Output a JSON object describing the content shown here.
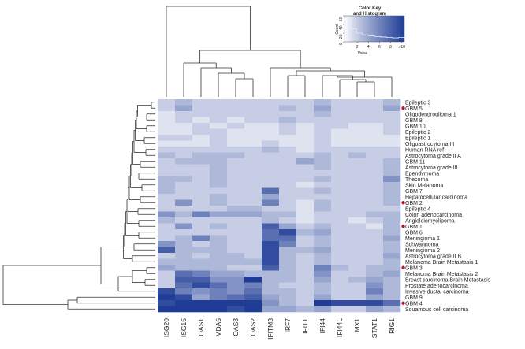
{
  "chart_data": {
    "type": "heatmap",
    "columns": [
      "ISG20",
      "ISG15",
      "OAS1",
      "MDA5",
      "OAS3",
      "OAS2",
      "IFITM3",
      "IRF7",
      "IFIT1",
      "IFI44",
      "IFI44L",
      "MX1",
      "STAT1",
      "RIG1"
    ],
    "rows": [
      "Epileptic 3",
      "GBM 5",
      "Oligodendroglioma 1",
      "GBM 8",
      "GBM 10",
      "Epileptic 2",
      "Epileptic 1",
      "Oligoastrocytoma III",
      "Human RNA ref",
      "Astrocytoma grade II A",
      "GBM 11",
      "Astrocytoma grade III",
      "Ependymoma",
      "Thecoma",
      "Skin Melanoma",
      "GBM 7",
      "Hepatocellular carcinoma",
      "GBM 2",
      "Epileptic 4",
      "Colon adenocarcinoma",
      "Angioleiomyolipoma",
      "GBM 1",
      "GBM 6",
      "Meningioma 1",
      "Schwannoma",
      "Meningioma 2",
      "Astrocytoma grade II B",
      "Melanoma Brain Metastasis 1",
      "GBM 3",
      "Melanoma Brain Metastasis 2",
      "Breast carcinoma Brain Metastasis",
      "Prostate adenocarcinoma",
      "Invasive ductal carcinoma",
      "GBM 9",
      "GBM 4",
      "Squamous cell carcinoma"
    ],
    "marked_rows": [
      "GBM 5",
      "GBM 2",
      "GBM 1",
      "GBM 3",
      "GBM 4"
    ],
    "values": [
      [
        2,
        3,
        2,
        2,
        2,
        2,
        2,
        2,
        2,
        3,
        2,
        2,
        2,
        3
      ],
      [
        2,
        4,
        2,
        2,
        2,
        2,
        2,
        3,
        2,
        4,
        2,
        2,
        2,
        4
      ],
      [
        1,
        2,
        2,
        2,
        2,
        2,
        2,
        2,
        2,
        3,
        2,
        2,
        2,
        2
      ],
      [
        1,
        2,
        1,
        2,
        1,
        2,
        2,
        3,
        2,
        2,
        2,
        2,
        2,
        2
      ],
      [
        1,
        1,
        2,
        1,
        2,
        1,
        1,
        2,
        1,
        2,
        2,
        1,
        1,
        2
      ],
      [
        1,
        1,
        2,
        2,
        1,
        1,
        1,
        2,
        1,
        2,
        1,
        1,
        1,
        2
      ],
      [
        2,
        2,
        1,
        2,
        1,
        1,
        1,
        1,
        1,
        2,
        1,
        1,
        1,
        1
      ],
      [
        1,
        1,
        1,
        2,
        1,
        1,
        2,
        1,
        1,
        2,
        1,
        1,
        1,
        1
      ],
      [
        2,
        2,
        2,
        2,
        2,
        2,
        3,
        2,
        1,
        2,
        2,
        2,
        2,
        2
      ],
      [
        3,
        2,
        3,
        3,
        3,
        2,
        2,
        2,
        2,
        3,
        2,
        3,
        2,
        2
      ],
      [
        2,
        3,
        3,
        3,
        2,
        2,
        2,
        2,
        4,
        3,
        2,
        2,
        2,
        3
      ],
      [
        2,
        2,
        2,
        3,
        2,
        2,
        2,
        2,
        2,
        3,
        2,
        2,
        2,
        3
      ],
      [
        2,
        2,
        2,
        3,
        2,
        2,
        2,
        2,
        2,
        2,
        2,
        2,
        2,
        3
      ],
      [
        3,
        3,
        2,
        3,
        2,
        2,
        2,
        2,
        2,
        3,
        2,
        2,
        2,
        5
      ],
      [
        3,
        2,
        2,
        3,
        2,
        2,
        2,
        2,
        1,
        2,
        2,
        2,
        2,
        3
      ],
      [
        3,
        2,
        2,
        2,
        2,
        2,
        7,
        2,
        2,
        3,
        2,
        2,
        2,
        3
      ],
      [
        2,
        2,
        2,
        3,
        2,
        2,
        4,
        2,
        2,
        2,
        2,
        2,
        2,
        3
      ],
      [
        2,
        5,
        2,
        3,
        2,
        2,
        6,
        2,
        1,
        3,
        2,
        2,
        2,
        3
      ],
      [
        2,
        2,
        2,
        2,
        3,
        3,
        2,
        2,
        1,
        3,
        2,
        2,
        2,
        2
      ],
      [
        5,
        3,
        6,
        4,
        4,
        4,
        3,
        3,
        1,
        2,
        2,
        2,
        3,
        3
      ],
      [
        3,
        2,
        2,
        2,
        2,
        2,
        3,
        2,
        1,
        2,
        2,
        1,
        2,
        3
      ],
      [
        2,
        5,
        2,
        3,
        2,
        2,
        8,
        4,
        2,
        3,
        2,
        2,
        1,
        3
      ],
      [
        2,
        2,
        2,
        2,
        2,
        2,
        7,
        9,
        3,
        4,
        2,
        2,
        2,
        3
      ],
      [
        2,
        3,
        6,
        3,
        2,
        2,
        7,
        7,
        2,
        3,
        2,
        2,
        2,
        4
      ],
      [
        5,
        3,
        2,
        3,
        2,
        2,
        9,
        6,
        2,
        3,
        2,
        2,
        2,
        3
      ],
      [
        8,
        3,
        3,
        3,
        2,
        2,
        9,
        3,
        3,
        4,
        2,
        2,
        2,
        3
      ],
      [
        2,
        3,
        2,
        3,
        3,
        2,
        9,
        3,
        2,
        3,
        2,
        2,
        2,
        4
      ],
      [
        3,
        3,
        3,
        3,
        3,
        3,
        9,
        3,
        2,
        3,
        2,
        2,
        2,
        3
      ],
      [
        4,
        3,
        3,
        3,
        2,
        2,
        8,
        3,
        2,
        6,
        3,
        2,
        3,
        3
      ],
      [
        2,
        7,
        6,
        4,
        4,
        3,
        3,
        3,
        2,
        5,
        2,
        2,
        3,
        4
      ],
      [
        2,
        8,
        8,
        5,
        5,
        10,
        3,
        3,
        2,
        4,
        2,
        3,
        4,
        3
      ],
      [
        2,
        7,
        9,
        7,
        5,
        6,
        3,
        2,
        2,
        3,
        2,
        2,
        5,
        3
      ],
      [
        9,
        6,
        5,
        6,
        5,
        7,
        3,
        3,
        2,
        3,
        2,
        2,
        6,
        3
      ],
      [
        10,
        9,
        4,
        6,
        7,
        8,
        4,
        3,
        2,
        4,
        2,
        2,
        4,
        3
      ],
      [
        9,
        10,
        10,
        10,
        10,
        10,
        5,
        3,
        2,
        10,
        9,
        9,
        9,
        7
      ],
      [
        10,
        10,
        10,
        10,
        9,
        10,
        4,
        4,
        3,
        4,
        2,
        2,
        4,
        3
      ]
    ],
    "color_key": {
      "title": "Color Key and Histogram",
      "xlabel": "Value",
      "ylabel": "Count",
      "x_ticks": [
        "2",
        "4",
        "6",
        "8",
        ">10"
      ],
      "y_ticks": [
        "0",
        "20",
        "40",
        "60"
      ],
      "range": [
        0,
        10
      ],
      "color_low": "#ffffff",
      "color_high": "#1f3c96",
      "histogram_counts": [
        55,
        30,
        20,
        16,
        14,
        12,
        11,
        10,
        9,
        10
      ]
    }
  }
}
